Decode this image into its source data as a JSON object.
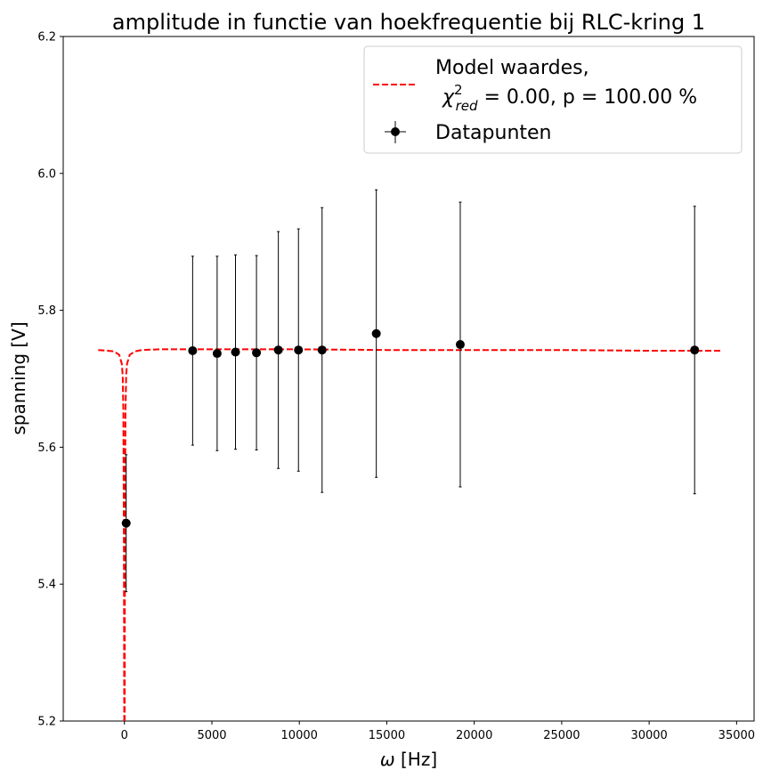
{
  "chart_data": {
    "type": "scatter",
    "title": "amplitude in functie van hoekfrequentie bij RLC-kring 1",
    "xlabel_symbol": "ω",
    "xlabel_unit": " [Hz]",
    "ylabel": "spanning [V]",
    "xlim": [
      -3500,
      36000
    ],
    "ylim": [
      5.2,
      6.2
    ],
    "xticks": [
      0,
      5000,
      10000,
      15000,
      20000,
      25000,
      30000,
      35000
    ],
    "xtick_labels": [
      "0",
      "5000",
      "10000",
      "15000",
      "20000",
      "25000",
      "30000",
      "35000"
    ],
    "yticks": [
      5.2,
      5.4,
      5.6,
      5.8,
      6.0,
      6.2
    ],
    "ytick_labels": [
      "5.2",
      "5.4",
      "5.6",
      "5.8",
      "6.0",
      "6.2"
    ],
    "grid": false,
    "legend_position": "top-right",
    "series": [
      {
        "name": "Model waardes,",
        "name_line2_prefix": "χ",
        "name_line2_sup": "2",
        "name_line2_sub": "red",
        "name_line2_rest": " = 0.00, p = 100.00 %",
        "kind": "line",
        "color": "#ff0000",
        "style": "dashed",
        "x": [
          -1500,
          -600,
          -300,
          -150,
          -100,
          -60,
          -30,
          -10,
          0,
          10,
          30,
          60,
          100,
          150,
          300,
          600,
          1000,
          2000,
          5000,
          10000,
          15000,
          20000,
          25000,
          30000,
          34200
        ],
        "y": [
          5.742,
          5.74,
          5.735,
          5.722,
          5.705,
          5.65,
          5.45,
          5.15,
          5.1,
          5.15,
          5.45,
          5.65,
          5.705,
          5.722,
          5.735,
          5.74,
          5.742,
          5.743,
          5.743,
          5.743,
          5.742,
          5.742,
          5.742,
          5.741,
          5.741
        ]
      },
      {
        "name": "Datapunten",
        "kind": "errorbar",
        "color": "#000000",
        "x": [
          100,
          3900,
          5300,
          6350,
          7550,
          8800,
          9950,
          11300,
          14400,
          19200,
          32600
        ],
        "y": [
          5.489,
          5.741,
          5.737,
          5.739,
          5.738,
          5.742,
          5.742,
          5.742,
          5.766,
          5.75,
          5.742
        ],
        "yerr": [
          0.1,
          0.138,
          0.142,
          0.142,
          0.142,
          0.173,
          0.177,
          0.208,
          0.21,
          0.208,
          0.21
        ]
      }
    ]
  }
}
